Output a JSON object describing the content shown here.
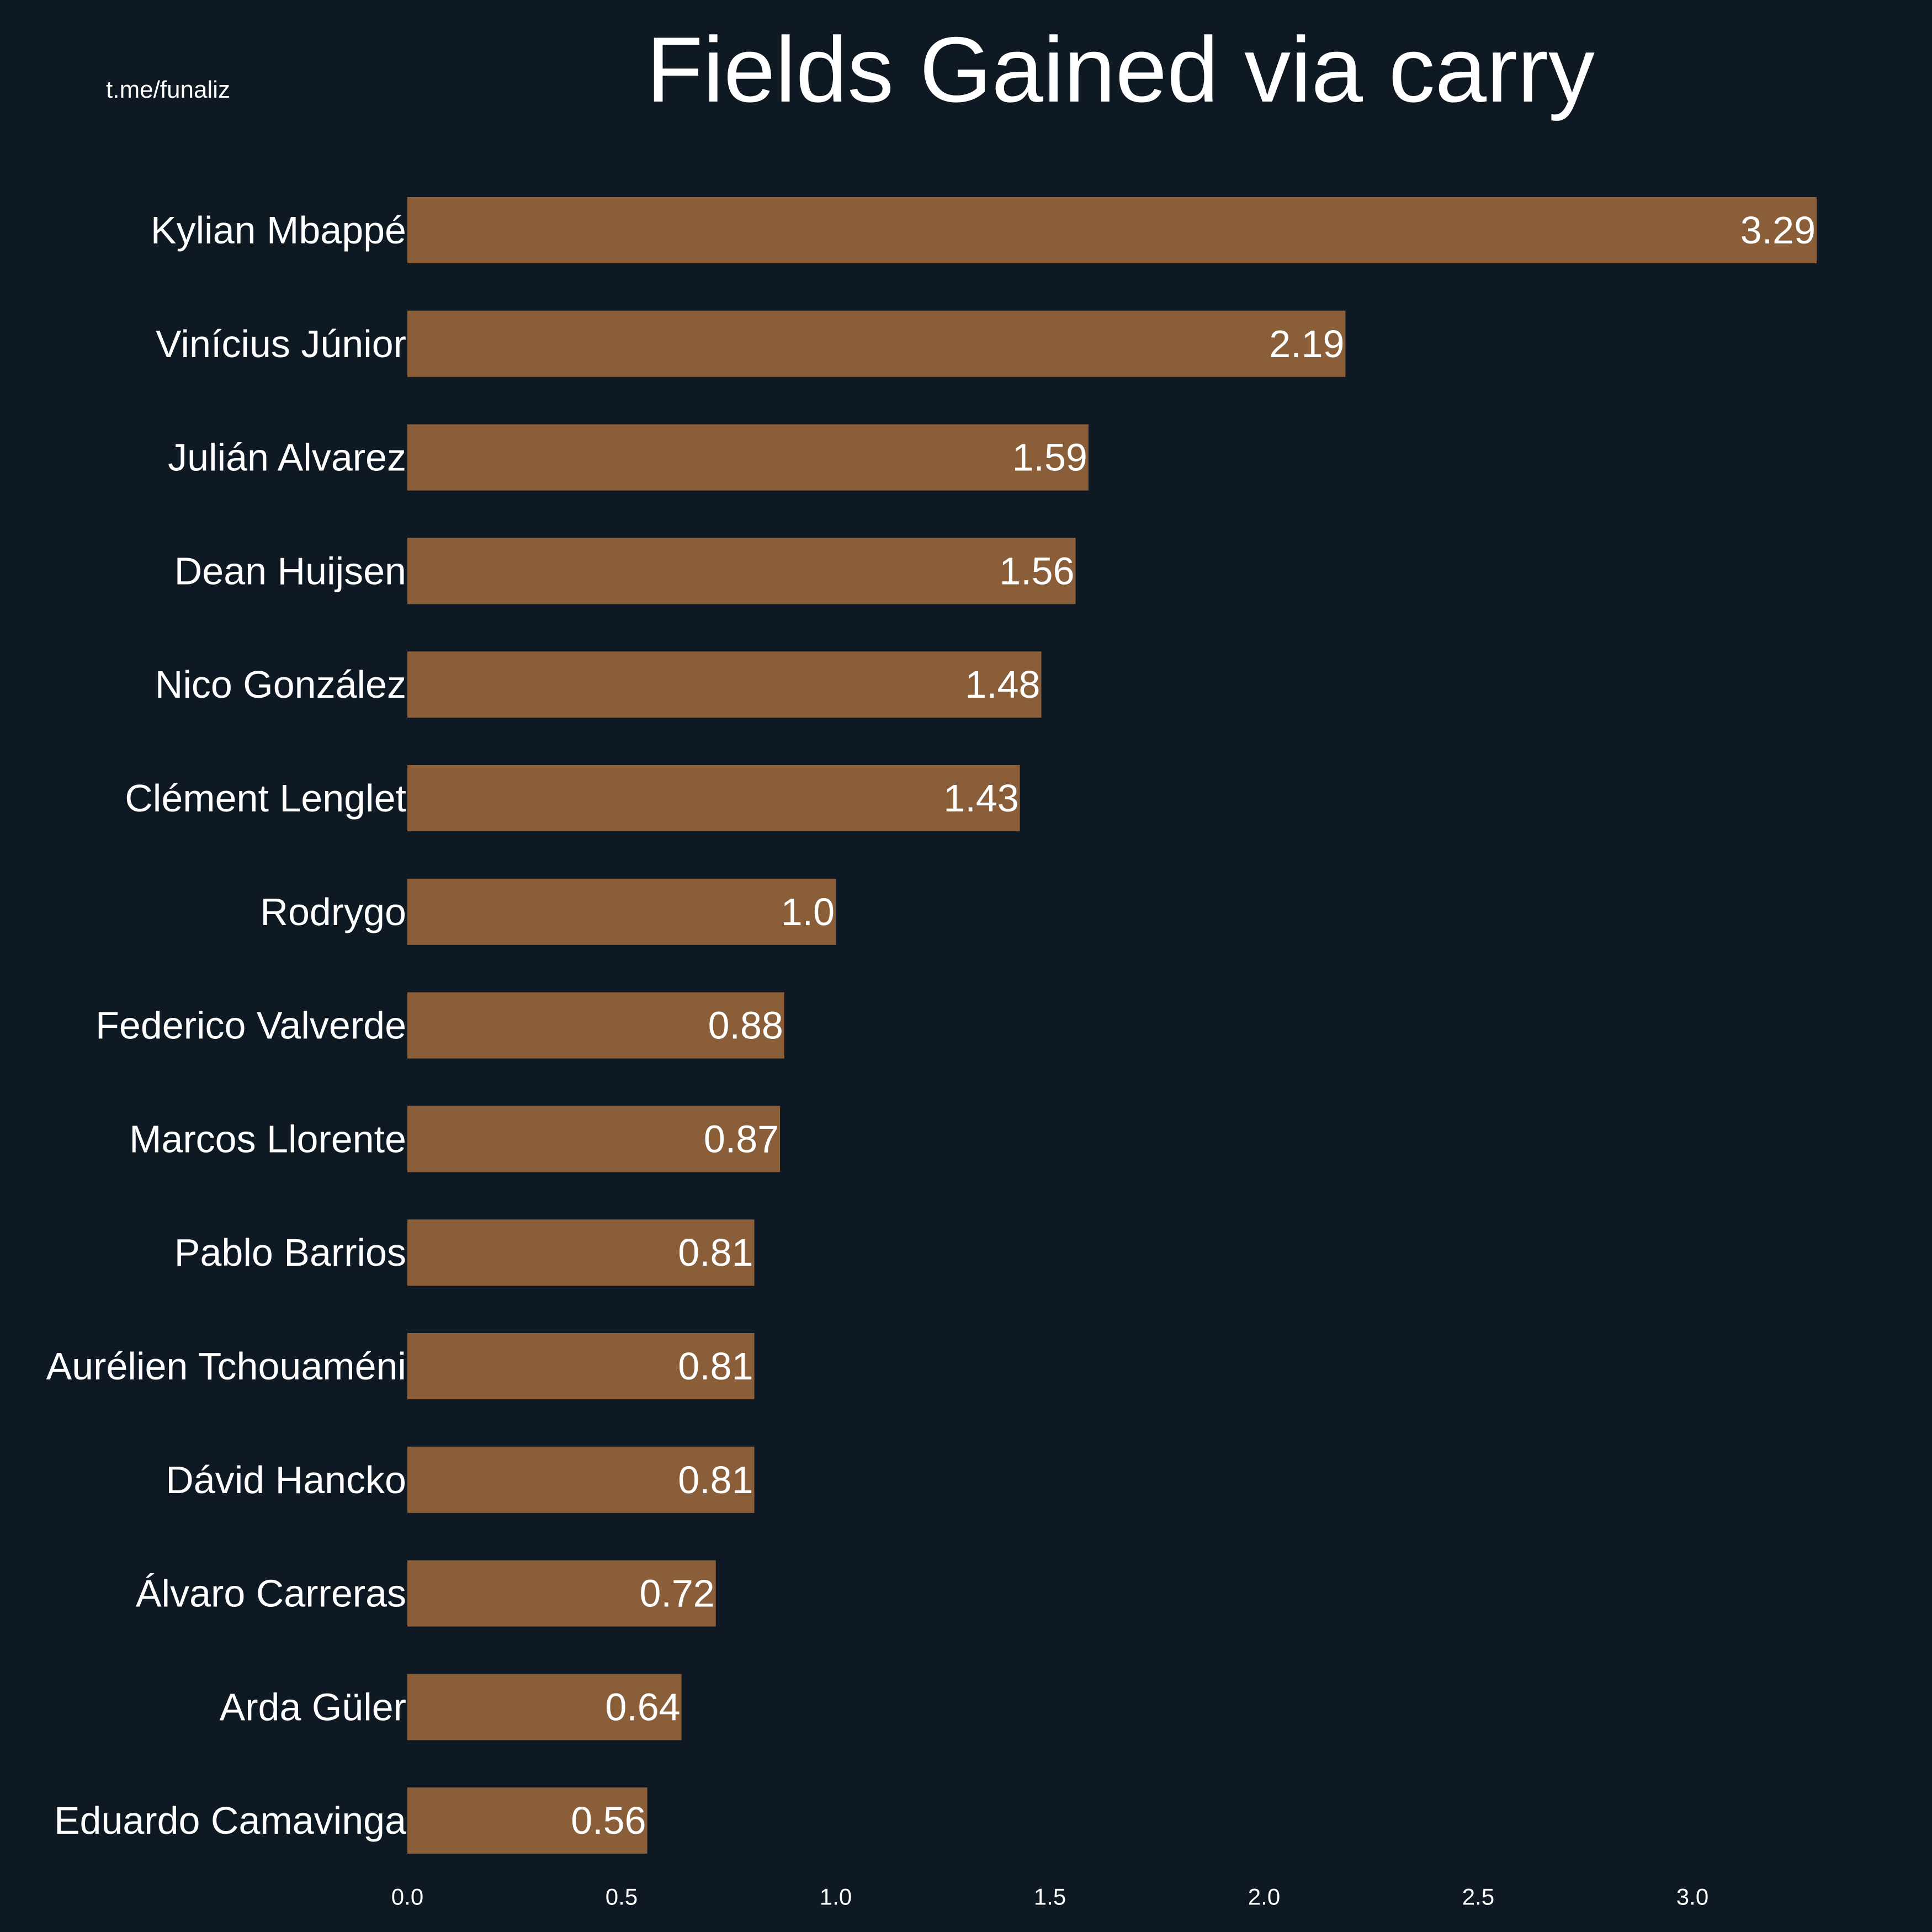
{
  "watermark": "t.me/funaliz",
  "colors": {
    "background": "#0f1923",
    "bar": "#8a5e38",
    "text": "#ffffff"
  },
  "chart_data": {
    "type": "bar",
    "orientation": "horizontal",
    "title": "Fields Gained via carry",
    "xlabel": "",
    "ylabel": "",
    "xlim": [
      0,
      3.45
    ],
    "grid": false,
    "x_ticks": [
      "0.0",
      "0.5",
      "1.0",
      "1.5",
      "2.0",
      "2.5",
      "3.0"
    ],
    "categories": [
      "Kylian Mbappé",
      "Vinícius Júnior",
      "Julián Alvarez",
      "Dean Huijsen",
      "Nico González",
      "Clément Lenglet",
      "Rodrygo",
      "Federico Valverde",
      "Marcos Llorente",
      "Pablo Barrios",
      "Aurélien Tchouaméni",
      "Dávid Hancko",
      "Álvaro Carreras",
      "Arda Güler",
      "Eduardo Camavinga"
    ],
    "values": [
      3.29,
      2.19,
      1.59,
      1.56,
      1.48,
      1.43,
      1.0,
      0.88,
      0.87,
      0.81,
      0.81,
      0.81,
      0.72,
      0.64,
      0.56
    ],
    "value_labels": [
      "3.29",
      "2.19",
      "1.59",
      "1.56",
      "1.48",
      "1.43",
      "1.0",
      "0.88",
      "0.87",
      "0.81",
      "0.81",
      "0.81",
      "0.72",
      "0.64",
      "0.56"
    ]
  }
}
